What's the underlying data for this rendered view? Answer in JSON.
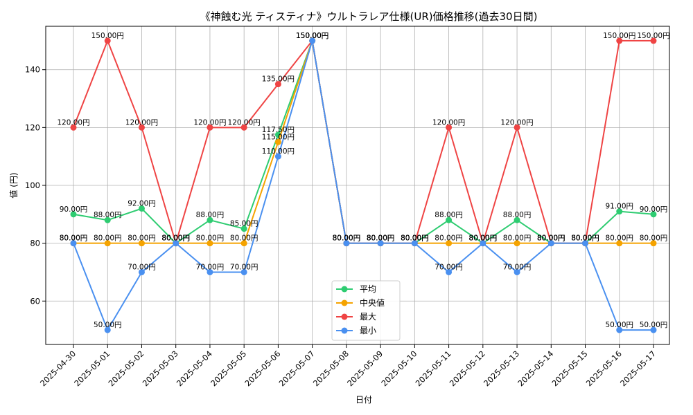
{
  "chart_data": {
    "type": "line",
    "title": "《神蝕む光 ティスティナ》ウルトラレア仕様(UR)価格推移(過去30日間)",
    "xlabel": "日付",
    "ylabel": "値 (円)",
    "ylim": [
      45,
      155
    ],
    "yticks": [
      60,
      80,
      100,
      120,
      140
    ],
    "grid": true,
    "legend_position": "lower-center",
    "value_suffix": "円",
    "categories": [
      "2025-04-30",
      "2025-05-01",
      "2025-05-02",
      "2025-05-03",
      "2025-05-04",
      "2025-05-05",
      "2025-05-06",
      "2025-05-07",
      "2025-05-08",
      "2025-05-09",
      "2025-05-10",
      "2025-05-11",
      "2025-05-12",
      "2025-05-13",
      "2025-05-14",
      "2025-05-15",
      "2025-05-16",
      "2025-05-17"
    ],
    "series": [
      {
        "name": "平均",
        "color": "#2ecc71",
        "values": [
          90,
          88,
          92,
          80,
          88,
          85,
          117.5,
          150,
          80,
          80,
          80,
          88,
          80,
          88,
          80,
          80,
          91,
          90
        ]
      },
      {
        "name": "中央値",
        "color": "#f5a300",
        "values": [
          80,
          80,
          80,
          80,
          80,
          80,
          115,
          150,
          80,
          80,
          80,
          80,
          80,
          80,
          80,
          80,
          80,
          80
        ]
      },
      {
        "name": "最大",
        "color": "#ef4444",
        "values": [
          120,
          150,
          120,
          80,
          120,
          120,
          135,
          150,
          80,
          80,
          80,
          120,
          80,
          120,
          80,
          80,
          150,
          150
        ]
      },
      {
        "name": "最小",
        "color": "#4a90f0",
        "values": [
          80,
          50,
          70,
          80,
          70,
          70,
          110,
          150,
          80,
          80,
          80,
          70,
          80,
          70,
          80,
          80,
          50,
          50
        ]
      }
    ]
  }
}
